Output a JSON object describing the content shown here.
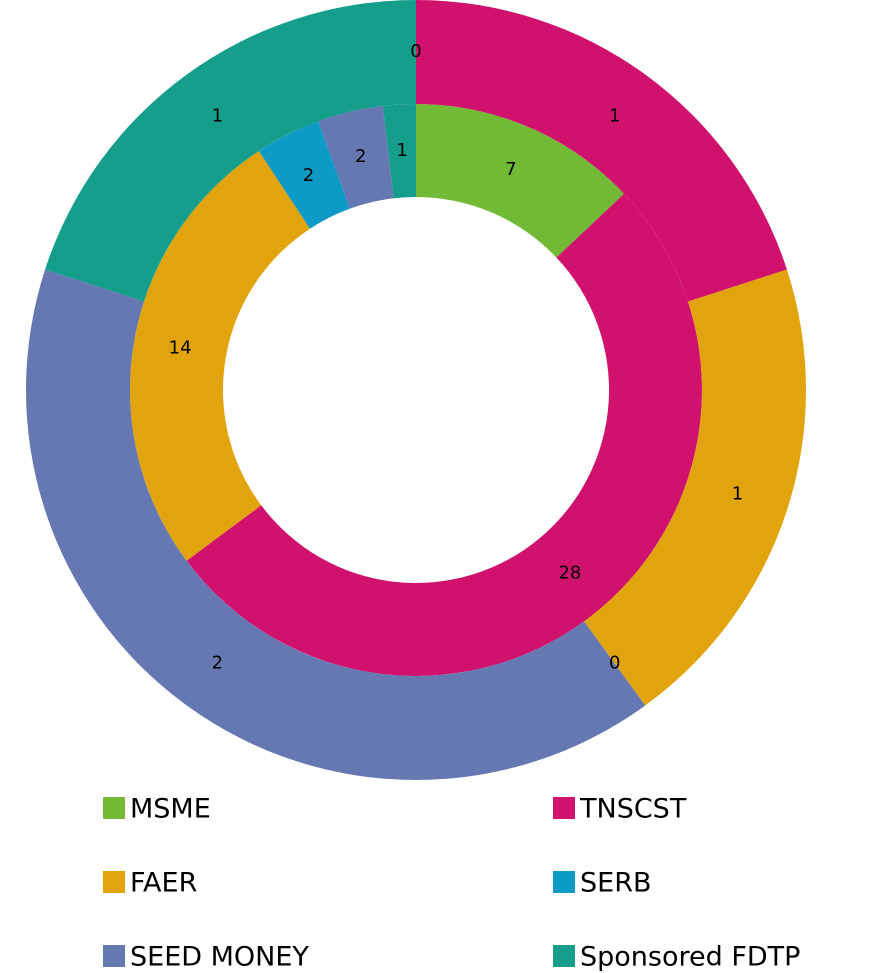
{
  "chart_data": {
    "type": "doughnut",
    "categories": [
      "MSME",
      "TNSCST",
      "FAER",
      "SERB",
      "SEED MONEY",
      "Sponsored FDTP"
    ],
    "colors": [
      "#72b936",
      "#d0126e",
      "#e2a40c",
      "#0e9ac7",
      "#6678b2",
      "#169e8c"
    ],
    "series": [
      {
        "values": [
          7,
          28,
          14,
          2,
          2,
          1
        ]
      },
      {
        "values": [
          0,
          1,
          1,
          0,
          2,
          1
        ]
      }
    ],
    "legend": "bottom"
  }
}
